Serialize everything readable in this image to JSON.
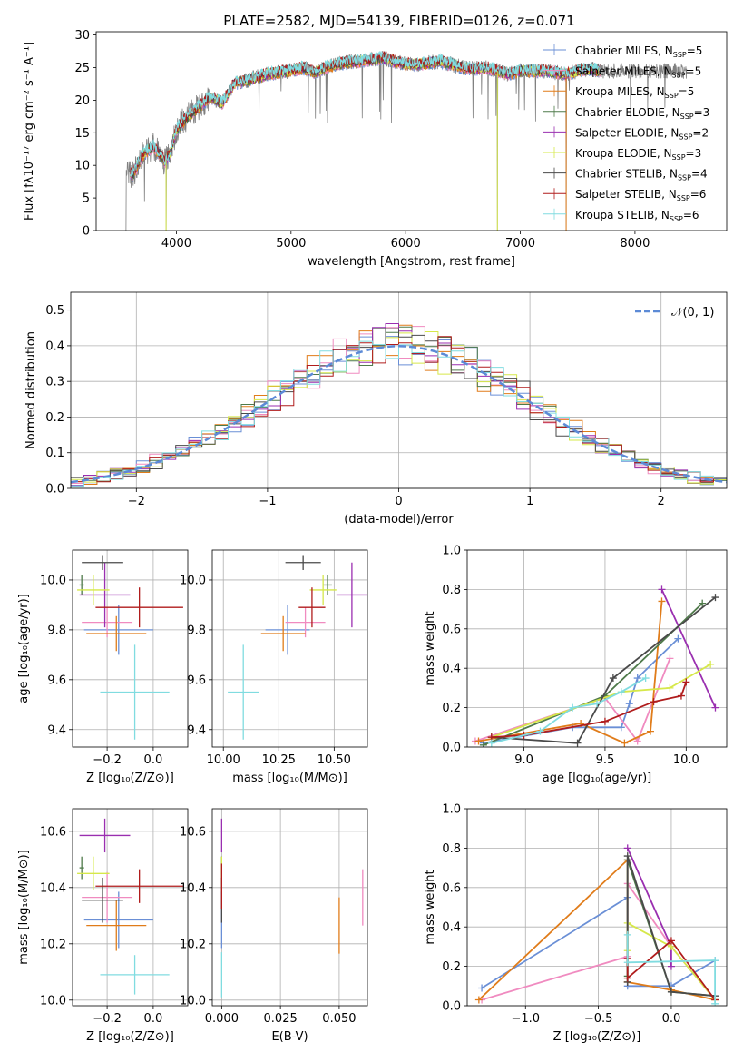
{
  "title": "PLATE=2582, MJD=54139, FIBERID=0126, z=0.071",
  "colors": {
    "series": [
      "#6a8fd6",
      "#f08bc0",
      "#e07c1a",
      "#4f7a4a",
      "#9a2fb0",
      "#d6e84a",
      "#4a4a4a",
      "#b01c1c",
      "#80dce0"
    ],
    "gray": "#808080",
    "dash": "#5c8ad6"
  },
  "chart_data": [
    {
      "type": "line",
      "id": "spectrum",
      "title": "PLATE=2582, MJD=54139, FIBERID=0126, z=0.071",
      "xlabel": "wavelength [Angstrom, rest frame]",
      "ylabel": "Flux [fλ10⁻¹⁷ erg cm⁻² s⁻¹ A⁻¹]",
      "xlim": [
        3300,
        8800
      ],
      "ylim": [
        0,
        30.5
      ],
      "xticks": [
        4000,
        5000,
        6000,
        7000,
        8000
      ],
      "yticks": [
        0,
        5,
        10,
        15,
        20,
        25,
        30
      ],
      "grid": false,
      "legend_position": "top-right",
      "legend": [
        {
          "label": "Chabrier MILES, NSSP=5"
        },
        {
          "label": "Salpeter MILES, NSSP=5"
        },
        {
          "label": "Kroupa MILES, NSSP=5"
        },
        {
          "label": "Chabrier ELODIE, NSSP=3"
        },
        {
          "label": "Salpeter ELODIE, NSSP=2"
        },
        {
          "label": "Kroupa ELODIE, NSSP=3"
        },
        {
          "label": "Chabrier STELIB, NSSP=4"
        },
        {
          "label": "Salpeter STELIB, NSSP=6"
        },
        {
          "label": "Kroupa STELIB, NSSP=6"
        }
      ],
      "continuum": {
        "x": [
          3560,
          3620,
          3700,
          3800,
          3900,
          3950,
          4000,
          4100,
          4200,
          4300,
          4400,
          4500,
          4600,
          4700,
          4800,
          4900,
          5000,
          5100,
          5200,
          5300,
          5400,
          5500,
          5600,
          5700,
          5800,
          5900,
          6000,
          6100,
          6200,
          6300,
          6400,
          6500,
          6600,
          6700,
          6800,
          6900,
          7000,
          7100,
          7200,
          7300,
          7400,
          7500,
          7600,
          7700
        ],
        "y": [
          9.0,
          8.5,
          11.5,
          13.0,
          10.5,
          12.0,
          15.5,
          17.5,
          19.0,
          20.5,
          19.5,
          22.5,
          23.0,
          23.5,
          24.0,
          24.3,
          24.5,
          25.0,
          24.2,
          25.0,
          25.5,
          25.8,
          26.0,
          26.2,
          26.5,
          26.0,
          25.5,
          25.5,
          25.7,
          26.0,
          25.5,
          25.0,
          24.8,
          25.0,
          24.5,
          24.0,
          24.5,
          24.5,
          24.5,
          24.3,
          24.0,
          24.5,
          24.8,
          24.5
        ]
      },
      "model_range": [
        3600,
        7700
      ],
      "data_range": [
        3560,
        8450
      ],
      "dips": [
        [
          3560,
          0
        ],
        [
          3910,
          0
        ],
        [
          6800,
          0
        ],
        [
          7400,
          0
        ]
      ]
    },
    {
      "type": "histogram",
      "id": "residuals",
      "xlabel": "(data-model)/error",
      "ylabel": "Normed distribution",
      "xlim": [
        -2.5,
        2.5
      ],
      "ylim": [
        0,
        0.55
      ],
      "xticks": [
        -2,
        -1,
        0,
        1,
        2
      ],
      "yticks": [
        0.0,
        0.1,
        0.2,
        0.3,
        0.4,
        0.5
      ],
      "grid": true,
      "legend_position": "top-right",
      "reference": {
        "label": "𝒩(0, 1)",
        "mean": 0,
        "sigma": 1
      },
      "bin_width": 0.1,
      "bin_start": -2.5,
      "series_seeds": [
        3,
        7,
        11,
        13,
        17,
        19,
        23,
        29,
        31
      ]
    },
    {
      "type": "scatter",
      "id": "age_vs_Z",
      "xlabel": "Z [log₁₀(Z/Z⊙)]",
      "ylabel": "age  [log₁₀(age/yr)]",
      "xlim": [
        -0.35,
        0.15
      ],
      "ylim": [
        9.33,
        10.12
      ],
      "xticks": [
        -0.2,
        0.0
      ],
      "yticks": [
        9.4,
        9.6,
        9.8,
        10.0
      ],
      "grid": true,
      "points": [
        {
          "x": -0.15,
          "y": 9.8,
          "xerr": 0.15,
          "yerr": 0.1
        },
        {
          "x": -0.2,
          "y": 9.83,
          "xerr": 0.11,
          "yerr": 0.06
        },
        {
          "x": -0.16,
          "y": 9.785,
          "xerr": 0.13,
          "yerr": 0.07
        },
        {
          "x": -0.31,
          "y": 9.98,
          "xerr": 0.01,
          "yerr": 0.04
        },
        {
          "x": -0.21,
          "y": 9.94,
          "xerr": 0.11,
          "yerr": 0.13
        },
        {
          "x": -0.26,
          "y": 9.96,
          "xerr": 0.07,
          "yerr": 0.06
        },
        {
          "x": -0.22,
          "y": 10.07,
          "xerr": 0.09,
          "yerr": 0.03
        },
        {
          "x": -0.06,
          "y": 9.89,
          "xerr": 0.19,
          "yerr": 0.08
        },
        {
          "x": -0.08,
          "y": 9.55,
          "xerr": 0.15,
          "yerr": 0.19
        }
      ]
    },
    {
      "type": "scatter",
      "id": "age_vs_mass",
      "xlabel": "mass [log₁₀(M/M⊙)]",
      "ylabel": "",
      "xlim": [
        9.95,
        10.65
      ],
      "ylim": [
        9.33,
        10.12
      ],
      "xticks": [
        10.0,
        10.25,
        10.5
      ],
      "yticks": [
        9.4,
        9.6,
        9.8,
        10.0
      ],
      "grid": true,
      "points": [
        {
          "x": 10.29,
          "y": 9.8,
          "xerr": 0.1,
          "yerr": 0.1
        },
        {
          "x": 10.37,
          "y": 9.83,
          "xerr": 0.09,
          "yerr": 0.06
        },
        {
          "x": 10.27,
          "y": 9.785,
          "xerr": 0.1,
          "yerr": 0.07
        },
        {
          "x": 10.47,
          "y": 9.98,
          "xerr": 0.02,
          "yerr": 0.04
        },
        {
          "x": 10.58,
          "y": 9.94,
          "xerr": 0.07,
          "yerr": 0.13
        },
        {
          "x": 10.45,
          "y": 9.96,
          "xerr": 0.06,
          "yerr": 0.06
        },
        {
          "x": 10.36,
          "y": 10.07,
          "xerr": 0.08,
          "yerr": 0.03
        },
        {
          "x": 10.4,
          "y": 9.89,
          "xerr": 0.06,
          "yerr": 0.08
        },
        {
          "x": 10.09,
          "y": 9.55,
          "xerr": 0.07,
          "yerr": 0.19
        }
      ]
    },
    {
      "type": "line",
      "id": "weight_vs_age",
      "xlabel": "age  [log₁₀(age/yr)]",
      "ylabel": "mass weight",
      "xlim": [
        8.65,
        10.25
      ],
      "ylim": [
        0,
        1.0
      ],
      "xticks": [
        9.0,
        9.5,
        10.0
      ],
      "yticks": [
        0.0,
        0.2,
        0.4,
        0.6,
        0.8,
        1.0
      ],
      "grid": true,
      "series": [
        {
          "x": [
            8.75,
            9.3,
            9.6,
            9.65,
            9.7,
            9.95
          ],
          "y": [
            0.02,
            0.1,
            0.1,
            0.22,
            0.35,
            0.55
          ]
        },
        {
          "x": [
            8.7,
            9.5,
            9.7,
            9.9
          ],
          "y": [
            0.03,
            0.25,
            0.03,
            0.45
          ]
        },
        {
          "x": [
            8.72,
            9.35,
            9.62,
            9.78,
            9.85
          ],
          "y": [
            0.03,
            0.12,
            0.02,
            0.08,
            0.74
          ]
        },
        {
          "x": [
            8.75,
            9.5,
            10.1
          ],
          "y": [
            0.01,
            0.26,
            0.73
          ]
        },
        {
          "x": [
            9.85,
            10.18
          ],
          "y": [
            0.8,
            0.2
          ]
        },
        {
          "x": [
            8.8,
            9.6,
            9.9,
            10.15
          ],
          "y": [
            0.05,
            0.28,
            0.3,
            0.42
          ]
        },
        {
          "x": [
            8.8,
            9.33,
            9.55,
            10.18
          ],
          "y": [
            0.05,
            0.02,
            0.35,
            0.76
          ]
        },
        {
          "x": [
            8.8,
            9.0,
            9.5,
            9.8,
            9.97,
            10.0
          ],
          "y": [
            0.05,
            0.06,
            0.13,
            0.23,
            0.26,
            0.33
          ]
        },
        {
          "x": [
            8.8,
            9.1,
            9.3,
            9.45,
            9.6,
            9.75
          ],
          "y": [
            0.02,
            0.08,
            0.2,
            0.22,
            0.28,
            0.35
          ]
        }
      ]
    },
    {
      "type": "scatter",
      "id": "mass_vs_Z",
      "xlabel": "Z [log₁₀(Z/Z⊙)]",
      "ylabel": "mass [log₁₀(M/M⊙)]",
      "xlim": [
        -0.35,
        0.15
      ],
      "ylim": [
        9.98,
        10.68
      ],
      "xticks": [
        -0.2,
        0.0
      ],
      "yticks": [
        10.0,
        10.2,
        10.4,
        10.6
      ],
      "grid": true,
      "points": [
        {
          "x": -0.15,
          "y": 10.285,
          "xerr": 0.15,
          "yerr": 0.1
        },
        {
          "x": -0.2,
          "y": 10.365,
          "xerr": 0.11,
          "yerr": 0.09
        },
        {
          "x": -0.16,
          "y": 10.265,
          "xerr": 0.13,
          "yerr": 0.09
        },
        {
          "x": -0.31,
          "y": 10.47,
          "xerr": 0.01,
          "yerr": 0.04
        },
        {
          "x": -0.21,
          "y": 10.585,
          "xerr": 0.11,
          "yerr": 0.06
        },
        {
          "x": -0.26,
          "y": 10.45,
          "xerr": 0.07,
          "yerr": 0.06
        },
        {
          "x": -0.22,
          "y": 10.355,
          "xerr": 0.09,
          "yerr": 0.08
        },
        {
          "x": -0.06,
          "y": 10.405,
          "xerr": 0.19,
          "yerr": 0.06
        },
        {
          "x": -0.08,
          "y": 10.09,
          "xerr": 0.15,
          "yerr": 0.07
        }
      ]
    },
    {
      "type": "scatter",
      "id": "mass_vs_ebv",
      "xlabel": "E(B-V)",
      "ylabel": "",
      "xlim": [
        -0.004,
        0.062
      ],
      "ylim": [
        9.98,
        10.68
      ],
      "xticks": [
        0.0,
        0.025,
        0.05
      ],
      "yticks": [
        10.0,
        10.2,
        10.4,
        10.6
      ],
      "grid": true,
      "points": [
        {
          "x": 0.0,
          "y": 10.285,
          "yerr": 0.1
        },
        {
          "x": 0.06,
          "y": 10.365,
          "yerr": 0.1
        },
        {
          "x": 0.05,
          "y": 10.265,
          "yerr": 0.1
        },
        {
          "x": 0.0,
          "y": 10.47,
          "yerr": 0.04
        },
        {
          "x": 0.0,
          "y": 10.585,
          "yerr": 0.06
        },
        {
          "x": 0.0,
          "y": 10.45,
          "yerr": 0.06
        },
        {
          "x": 0.0,
          "y": 10.355,
          "yerr": 0.08
        },
        {
          "x": 0.0,
          "y": 10.405,
          "yerr": 0.08
        },
        {
          "x": 0.0,
          "y": 10.09,
          "yerr": 0.08
        }
      ]
    },
    {
      "type": "line",
      "id": "weight_vs_Z",
      "xlabel": "Z [log₁₀(Z/Z⊙)]",
      "ylabel": "mass weight",
      "xlim": [
        -1.4,
        0.38
      ],
      "ylim": [
        0,
        1.0
      ],
      "xticks": [
        -1.0,
        -0.5,
        0.0
      ],
      "yticks": [
        0.0,
        0.2,
        0.4,
        0.6,
        0.8,
        1.0
      ],
      "grid": true,
      "series": [
        {
          "x": [
            -1.3,
            -0.3,
            -0.3,
            0.0,
            0.3
          ],
          "y": [
            0.09,
            0.55,
            0.1,
            0.1,
            0.23
          ]
        },
        {
          "x": [
            -1.3,
            -0.3,
            -0.3,
            0.0,
            0.3
          ],
          "y": [
            0.03,
            0.25,
            0.62,
            0.3,
            0.03
          ]
        },
        {
          "x": [
            -1.32,
            -0.3,
            -0.3,
            0.0,
            0.3
          ],
          "y": [
            0.03,
            0.74,
            0.12,
            0.08,
            0.03
          ]
        },
        {
          "x": [
            -0.3,
            -0.3,
            0.0,
            0.3
          ],
          "y": [
            0.15,
            0.74,
            0.07,
            0.05
          ]
        },
        {
          "x": [
            -0.3,
            0.0,
            0.0
          ],
          "y": [
            0.8,
            0.3,
            0.2
          ]
        },
        {
          "x": [
            -0.3,
            -0.3,
            0.0,
            0.3
          ],
          "y": [
            0.28,
            0.42,
            0.3,
            0.03
          ]
        },
        {
          "x": [
            -0.3,
            -0.3,
            0.0,
            0.3
          ],
          "y": [
            0.12,
            0.76,
            0.07,
            0.05
          ]
        },
        {
          "x": [
            -0.3,
            -0.3,
            0.0,
            0.3
          ],
          "y": [
            0.24,
            0.14,
            0.33,
            0.03
          ]
        },
        {
          "x": [
            -0.3,
            -0.3,
            0.3,
            0.3
          ],
          "y": [
            0.36,
            0.22,
            0.23,
            0.01
          ]
        }
      ]
    }
  ]
}
